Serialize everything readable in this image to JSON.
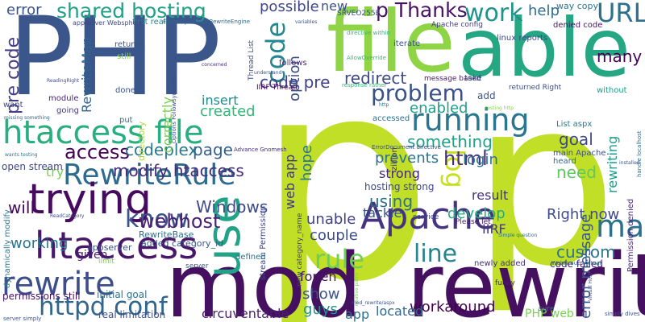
{
  "words": [
    {
      "text": "p",
      "color": "#c0df26"
    },
    {
      "text": "p",
      "color": "#c0df26"
    },
    {
      "text": "mod_rewrite",
      "color": "#45105f"
    },
    {
      "text": "PHP",
      "color": "#3a568a"
    },
    {
      "text": "able",
      "color": "#26a784"
    },
    {
      "text": "file",
      "color": "#8fd445"
    },
    {
      "text": "htaccess file",
      "color": "#29af7f"
    },
    {
      "text": "Apache",
      "color": "#463480"
    },
    {
      "text": "RewriteRule",
      "color": "#2f6b8e"
    },
    {
      "text": "trying",
      "color": "#460b5e"
    },
    {
      "text": "rewrite",
      "color": "#3c4f8a"
    },
    {
      "text": "htaccess",
      "color": "#481769"
    },
    {
      "text": "httpd conf",
      "color": "#31668d"
    },
    {
      "text": "use",
      "color": "#20a386"
    },
    {
      "text": "log",
      "color": "#c8e020"
    },
    {
      "text": "running",
      "color": "#2a768e"
    },
    {
      "text": "problem",
      "color": "#3b518b"
    },
    {
      "text": "work",
      "color": "#20938c"
    },
    {
      "text": "URL",
      "color": "#2d718e"
    },
    {
      "text": "shared hosting",
      "color": "#1fa088"
    },
    {
      "text": "p Thanks",
      "color": "#471164"
    },
    {
      "text": "code",
      "color": "#24868e"
    },
    {
      "text": "code pre",
      "color": "#414487"
    },
    {
      "text": "pre code",
      "color": "#433e85"
    },
    {
      "text": "know",
      "color": "#3b528b"
    },
    {
      "text": "rule",
      "color": "#6ece58"
    },
    {
      "text": "line",
      "color": "#25848e"
    },
    {
      "text": "map",
      "color": "#2d708e"
    },
    {
      "text": "access",
      "color": "#440154"
    },
    {
      "text": "modify htaccess",
      "color": "#472c7a"
    },
    {
      "text": "created",
      "color": "#35b779"
    },
    {
      "text": "page",
      "color": "#34608d"
    },
    {
      "text": "insert",
      "color": "#23898e"
    },
    {
      "text": "codeplex",
      "color": "#2a788e"
    },
    {
      "text": "webhost",
      "color": "#482173"
    },
    {
      "text": "Windows",
      "color": "#3e4a89"
    },
    {
      "text": "redirect",
      "color": "#3e4c8a"
    },
    {
      "text": "enabled",
      "color": "#1f9e89"
    },
    {
      "text": "something",
      "color": "#1fa187"
    },
    {
      "text": "html",
      "color": "#472d7b"
    },
    {
      "text": "login",
      "color": "#2c728e"
    },
    {
      "text": "goal",
      "color": "#3e4989"
    },
    {
      "text": "need",
      "color": "#5ec962"
    },
    {
      "text": "custom",
      "color": "#2c738e"
    },
    {
      "text": "result",
      "color": "#46337f"
    },
    {
      "text": "develop",
      "color": "#27ad81"
    },
    {
      "text": "Right now",
      "color": "#3e4a89"
    },
    {
      "text": "error message",
      "color": "#38598c"
    },
    {
      "text": "rewriting",
      "color": "#1e9b8a"
    },
    {
      "text": "many",
      "color": "#440256"
    },
    {
      "text": "help",
      "color": "#2e6e8e"
    },
    {
      "text": "option",
      "color": "#3d4d8a"
    },
    {
      "text": "possible",
      "color": "#3f4788"
    },
    {
      "text": "new",
      "color": "#3b518b"
    },
    {
      "text": "error",
      "color": "#3a538b"
    },
    {
      "text": "will",
      "color": "#450559"
    },
    {
      "text": "try",
      "color": "#7ad151"
    },
    {
      "text": "prevents",
      "color": "#2d718e"
    },
    {
      "text": "hope",
      "color": "#2a788e"
    },
    {
      "text": "web app",
      "color": "#453781"
    },
    {
      "text": "strong",
      "color": "#482677"
    },
    {
      "text": "hosting strong",
      "color": "#3f4889"
    },
    {
      "text": "using",
      "color": "#2e6f8e"
    },
    {
      "text": "tackle",
      "color": "#39568c"
    },
    {
      "text": "unable",
      "color": "#424086"
    },
    {
      "text": "couple",
      "color": "#3e4c8a"
    },
    {
      "text": "IIRF",
      "color": "#453882"
    },
    {
      "text": "code failed",
      "color": "#482374"
    },
    {
      "text": "working",
      "color": "#2a768e"
    },
    {
      "text": "given",
      "color": "#482071"
    },
    {
      "text": "show",
      "color": "#3b528b"
    },
    {
      "text": "fopen",
      "color": "#471365"
    },
    {
      "text": "guys",
      "color": "#20938c"
    },
    {
      "text": "workaround",
      "color": "#440154"
    },
    {
      "text": "located",
      "color": "#31688e"
    },
    {
      "text": "circuventable",
      "color": "#481f70"
    },
    {
      "text": "PHP web",
      "color": "#7ad151"
    },
    {
      "text": "app",
      "color": "#2d708e"
    },
    {
      "text": "real limitation",
      "color": "#3c508b"
    },
    {
      "text": "initial goal",
      "color": "#2c738e"
    },
    {
      "text": "permissions still",
      "color": "#471063"
    },
    {
      "text": "dynamically modify",
      "color": "#2a788e"
    },
    {
      "text": "correctly",
      "color": "#7ad151"
    },
    {
      "text": "RewriteMap",
      "color": "#32658e"
    },
    {
      "text": "directory",
      "color": "#a5db36"
    },
    {
      "text": "open stream",
      "color": "#414487"
    },
    {
      "text": "RewriteBase",
      "color": "#2d708e"
    },
    {
      "text": "added category_id",
      "color": "#39568c"
    },
    {
      "text": "appserver",
      "color": "#3b518b"
    },
    {
      "text": "Permission denied",
      "color": "#482878"
    },
    {
      "text": "newly added",
      "color": "#472f7d"
    },
    {
      "text": "IIRF Thread",
      "color": "#440154"
    },
    {
      "text": "way copy",
      "color": "#2b758e"
    },
    {
      "text": "SRVEO255E",
      "color": "#3d4e8a"
    },
    {
      "text": "Apache config",
      "color": "#433e85"
    },
    {
      "text": "linux reports",
      "color": "#3f4788"
    },
    {
      "text": "denied code",
      "color": "#481467"
    },
    {
      "text": "first real",
      "color": "#25858e"
    },
    {
      "text": "returns",
      "color": "#3a538b"
    },
    {
      "text": "still",
      "color": "#86d549"
    },
    {
      "text": "done",
      "color": "#3b528b"
    },
    {
      "text": "module",
      "color": "#482576"
    },
    {
      "text": "going",
      "color": "#443a83"
    },
    {
      "text": "put",
      "color": "#2f6c8e"
    },
    {
      "text": "want",
      "color": "#3e4989"
    },
    {
      "text": "follows",
      "color": "#472c7a"
    },
    {
      "text": "add",
      "color": "#3a538b"
    },
    {
      "text": "take",
      "color": "#2f6c8e"
    },
    {
      "text": "accessed",
      "color": "#2d708e"
    },
    {
      "text": "iterate",
      "color": "#3b528b"
    },
    {
      "text": "message based",
      "color": "#481a6c"
    },
    {
      "text": "returned Right",
      "color": "#3c4f8a"
    },
    {
      "text": "without",
      "color": "#1fa187"
    },
    {
      "text": "List aspx",
      "color": "#2a788e"
    },
    {
      "text": "main Apache",
      "color": "#3e4c8a"
    },
    {
      "text": "heard",
      "color": "#2d708e"
    },
    {
      "text": "service",
      "color": "#3e4989"
    },
    {
      "text": "zillion",
      "color": "#472c7a"
    },
    {
      "text": "stream Permission",
      "color": "#3f4788"
    },
    {
      "text": "new category_name",
      "color": "#433e85"
    },
    {
      "text": "defined",
      "color": "#2c738e"
    },
    {
      "text": "server",
      "color": "#3b528b"
    },
    {
      "text": "limit",
      "color": "#7ad151"
    },
    {
      "text": "funky",
      "color": "#482374"
    },
    {
      "text": "sure",
      "color": "#2a788e"
    },
    {
      "text": "Please let",
      "color": "#481467"
    },
    {
      "text": "Thread List",
      "color": "#3b518b"
    },
    {
      "text": "appserver Websphere",
      "color": "#3e4989"
    },
    {
      "text": "FollowSymLinks RewriteEngine",
      "color": "#31688e"
    },
    {
      "text": "Advance Gnomesh",
      "color": "#472c7a"
    },
    {
      "text": "handle localhost",
      "color": "#2d708e"
    },
    {
      "text": "simply dives",
      "color": "#3b528b"
    },
    {
      "text": "server simply",
      "color": "#3b528b"
    },
    {
      "text": "Options FollowSymLinks",
      "color": "#3e4c8a"
    },
    {
      "text": "WebGroup Virtual",
      "color": "#2d708e"
    },
    {
      "text": "relative paths",
      "color": "#7ad151"
    },
    {
      "text": "directive within",
      "color": "#35b779"
    },
    {
      "text": "ErrorDocument directive",
      "color": "#3e4c8a"
    },
    {
      "text": "response rather",
      "color": "#35b779"
    },
    {
      "text": "variables",
      "color": "#3b528b"
    },
    {
      "text": "Virtual Host",
      "color": "#3e4c8a"
    },
    {
      "text": "wants testing",
      "color": "#2a788e"
    },
    {
      "text": "missing something",
      "color": "#31688e"
    },
    {
      "text": "Simple question",
      "color": "#2d708e"
    },
    {
      "text": "testing http",
      "color": "#86d549"
    },
    {
      "text": "installed",
      "color": "#3b528b"
    },
    {
      "text": "AllowOverride",
      "color": "#35b779"
    },
    {
      "text": "ReadingRight",
      "color": "#3e4989"
    },
    {
      "text": "ReadCategory",
      "color": "#3e4989"
    },
    {
      "text": "concerned",
      "color": "#472c7a"
    },
    {
      "text": "understand",
      "color": "#3b528b"
    },
    {
      "text": "http",
      "color": "#2a788e"
    },
    {
      "text": "mod_rewrite/aspx",
      "color": "#3b528b"
    }
  ]
}
